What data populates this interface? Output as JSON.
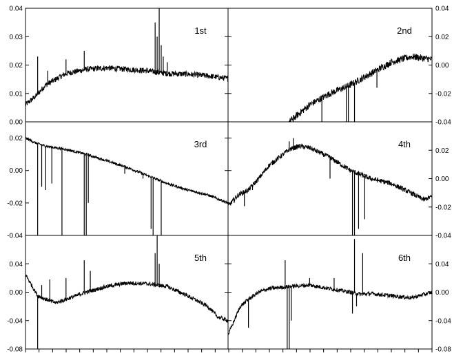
{
  "chart_data": {
    "type": "line",
    "layout": "grid 3 rows x 2 columns, shared x-axis, left y-axis on left column, right y-axis on right column",
    "grid": false,
    "colors": {
      "line": "#000000",
      "background": "#ffffff"
    },
    "xlim": [
      0,
      100
    ],
    "rows": [
      {
        "ylim": [
          0.0,
          0.04
        ],
        "yticks": [
          0.0,
          0.01,
          0.02,
          0.03,
          0.04
        ],
        "yticklabels": [
          "0.00",
          "0.01",
          "0.02",
          "0.03",
          "0.04"
        ]
      },
      {
        "ylim": [
          -0.04,
          0.03
        ],
        "yticks": [
          -0.04,
          -0.02,
          0.0,
          0.02
        ],
        "yticklabels": [
          "-0.04",
          "-0.02",
          "0.00",
          "0.02"
        ]
      },
      {
        "ylim": [
          -0.08,
          0.08
        ],
        "yticks": [
          -0.08,
          -0.04,
          0.0,
          0.04
        ],
        "yticklabels": [
          "-0.08",
          "-0.04",
          "0.00",
          "0.04"
        ]
      }
    ],
    "right_axis": [
      {
        "ylim": [
          -0.04,
          0.04
        ],
        "yticks": [
          -0.04,
          -0.02,
          0.0,
          0.02,
          0.04
        ],
        "yticklabels": [
          "-0.04",
          "-0.02",
          "0.00",
          "0.02",
          "0.04"
        ]
      },
      {
        "ylim": [
          -0.04,
          0.04
        ],
        "yticks": [
          -0.04,
          -0.02,
          0.0,
          0.02
        ],
        "yticklabels": [
          "-0.04",
          "-0.02",
          "0.00",
          "0.02"
        ]
      },
      {
        "ylim": [
          -0.08,
          0.08
        ],
        "yticks": [
          -0.08,
          -0.04,
          0.0,
          0.04
        ],
        "yticklabels": [
          "-0.08",
          "-0.04",
          "0.00",
          "0.04"
        ]
      }
    ],
    "panels": [
      {
        "label": "1st",
        "row": 0,
        "col": 0,
        "curve": [
          [
            0,
            0.006
          ],
          [
            5,
            0.009
          ],
          [
            10,
            0.013
          ],
          [
            15,
            0.015
          ],
          [
            20,
            0.017
          ],
          [
            30,
            0.0185
          ],
          [
            40,
            0.019
          ],
          [
            50,
            0.0185
          ],
          [
            60,
            0.018
          ],
          [
            70,
            0.017
          ],
          [
            80,
            0.0168
          ],
          [
            90,
            0.0162
          ],
          [
            100,
            0.0152
          ]
        ],
        "noise": 0.001,
        "spikes": [
          [
            6,
            0.023
          ],
          [
            11,
            0.018
          ],
          [
            20,
            0.022
          ],
          [
            29,
            0.025
          ],
          [
            64,
            0.035
          ],
          [
            65,
            0.03
          ],
          [
            66,
            0.04
          ],
          [
            67,
            0.027
          ],
          [
            68,
            0.023
          ],
          [
            70,
            0.021
          ]
        ]
      },
      {
        "label": "2nd",
        "row": 0,
        "col": 1,
        "curve": [
          [
            0,
            -0.012
          ],
          [
            5,
            -0.018
          ],
          [
            10,
            -0.024
          ],
          [
            15,
            -0.02
          ],
          [
            20,
            -0.01
          ],
          [
            30,
            0.0
          ],
          [
            40,
            0.006
          ],
          [
            50,
            0.01
          ],
          [
            60,
            0.013
          ],
          [
            70,
            0.017
          ],
          [
            80,
            0.021
          ],
          [
            90,
            0.023
          ],
          [
            100,
            0.022
          ]
        ],
        "noise": 0.0012,
        "spikes": [
          [
            6,
            -0.03
          ],
          [
            7,
            -0.035
          ],
          [
            8,
            -0.036
          ],
          [
            17,
            -0.032
          ],
          [
            28,
            -0.035
          ],
          [
            29,
            -0.039
          ],
          [
            32,
            -0.036
          ],
          [
            46,
            -0.005
          ],
          [
            58,
            -0.04
          ],
          [
            59,
            -0.04
          ],
          [
            62,
            -0.032
          ],
          [
            73,
            0.012
          ]
        ]
      },
      {
        "label": "3rd",
        "row": 1,
        "col": 0,
        "curve": [
          [
            0,
            0.02
          ],
          [
            5,
            0.017
          ],
          [
            10,
            0.015
          ],
          [
            20,
            0.013
          ],
          [
            30,
            0.01
          ],
          [
            40,
            0.006
          ],
          [
            50,
            0.002
          ],
          [
            60,
            -0.003
          ],
          [
            70,
            -0.008
          ],
          [
            80,
            -0.012
          ],
          [
            90,
            -0.015
          ],
          [
            100,
            -0.02
          ]
        ],
        "noise": 0.0008,
        "spikes": [
          [
            6,
            -0.04
          ],
          [
            8,
            -0.01
          ],
          [
            10,
            -0.012
          ],
          [
            13,
            -0.008
          ],
          [
            18,
            -0.04
          ],
          [
            29,
            -0.04
          ],
          [
            30,
            -0.04
          ],
          [
            31,
            -0.02
          ],
          [
            49,
            -0.002
          ],
          [
            58,
            -0.005
          ],
          [
            62,
            -0.036
          ],
          [
            63,
            -0.04
          ],
          [
            67,
            -0.04
          ],
          [
            75,
            -0.01
          ]
        ]
      },
      {
        "label": "4th",
        "row": 1,
        "col": 1,
        "curve": [
          [
            0,
            -0.022
          ],
          [
            5,
            -0.015
          ],
          [
            10,
            -0.012
          ],
          [
            15,
            -0.005
          ],
          [
            20,
            0.003
          ],
          [
            25,
            0.008
          ],
          [
            30,
            0.013
          ],
          [
            35,
            0.015
          ],
          [
            40,
            0.014
          ],
          [
            50,
            0.008
          ],
          [
            60,
            0.0
          ],
          [
            70,
            -0.005
          ],
          [
            80,
            -0.008
          ],
          [
            90,
            -0.014
          ],
          [
            96,
            -0.018
          ],
          [
            100,
            -0.016
          ]
        ],
        "noise": 0.0015,
        "spikes": [
          [
            3,
            -0.02
          ],
          [
            6,
            -0.015
          ],
          [
            8,
            -0.022
          ],
          [
            12,
            -0.012
          ],
          [
            30,
            0.018
          ],
          [
            32,
            0.02
          ],
          [
            50,
            -0.005
          ],
          [
            61,
            -0.04
          ],
          [
            62,
            -0.04
          ],
          [
            64,
            -0.036
          ],
          [
            67,
            -0.03
          ]
        ]
      },
      {
        "label": "5th",
        "row": 2,
        "col": 0,
        "curve": [
          [
            0,
            0.025
          ],
          [
            3,
            0.01
          ],
          [
            6,
            -0.005
          ],
          [
            10,
            -0.01
          ],
          [
            15,
            -0.015
          ],
          [
            20,
            -0.01
          ],
          [
            30,
            0.0
          ],
          [
            40,
            0.008
          ],
          [
            50,
            0.013
          ],
          [
            60,
            0.012
          ],
          [
            65,
            0.01
          ],
          [
            70,
            0.008
          ],
          [
            80,
            -0.005
          ],
          [
            90,
            -0.02
          ],
          [
            95,
            -0.035
          ],
          [
            100,
            -0.04
          ]
        ],
        "noise": 0.0028,
        "spikes": [
          [
            6,
            -0.08
          ],
          [
            8,
            0.01
          ],
          [
            12,
            0.018
          ],
          [
            20,
            0.02
          ],
          [
            29,
            0.045
          ],
          [
            32,
            0.03
          ],
          [
            64,
            0.055
          ],
          [
            65,
            0.08
          ],
          [
            66,
            0.04
          ]
        ]
      },
      {
        "label": "6th",
        "row": 2,
        "col": 1,
        "curve": [
          [
            0,
            -0.06
          ],
          [
            3,
            -0.04
          ],
          [
            6,
            -0.02
          ],
          [
            10,
            -0.01
          ],
          [
            15,
            0.0
          ],
          [
            20,
            0.005
          ],
          [
            30,
            0.008
          ],
          [
            40,
            0.01
          ],
          [
            50,
            0.005
          ],
          [
            60,
            0.0
          ],
          [
            65,
            -0.003
          ],
          [
            70,
            -0.002
          ],
          [
            80,
            -0.005
          ],
          [
            90,
            -0.008
          ],
          [
            100,
            0.0
          ]
        ],
        "noise": 0.0028,
        "spikes": [
          [
            10,
            -0.05
          ],
          [
            28,
            0.045
          ],
          [
            29,
            -0.08
          ],
          [
            30,
            -0.08
          ],
          [
            31,
            -0.04
          ],
          [
            40,
            0.02
          ],
          [
            52,
            0.02
          ],
          [
            61,
            -0.03
          ],
          [
            62,
            0.075
          ],
          [
            63,
            -0.02
          ],
          [
            66,
            0.055
          ]
        ]
      }
    ]
  }
}
